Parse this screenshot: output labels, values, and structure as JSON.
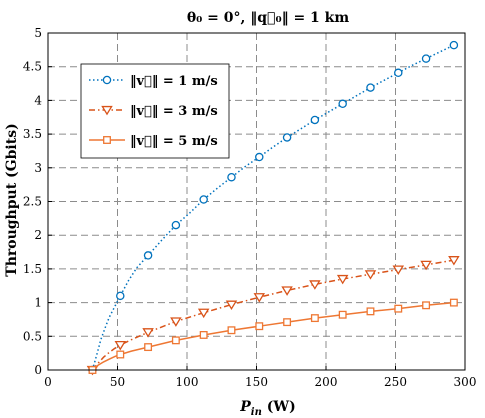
{
  "chart_data": {
    "type": "line",
    "title": "θ₀ = 0°, ‖q⃗₀‖ = 1 km",
    "xlabel": "P_in (W)",
    "xlabel_main": "P",
    "xlabel_sub": "in",
    "xlabel_unit": " (W)",
    "ylabel": "Throughput (Gbits)",
    "xlim": [
      0,
      300
    ],
    "ylim": [
      0,
      5
    ],
    "x_ticks": [
      "0",
      "50",
      "100",
      "150",
      "200",
      "250",
      "300"
    ],
    "y_ticks": [
      "0",
      "0.5",
      "1",
      "1.5",
      "2",
      "2.5",
      "3",
      "3.5",
      "4",
      "4.5",
      "5"
    ],
    "grid": true,
    "legend_position": "top-left",
    "series": [
      {
        "name": "‖v⃗‖ = 1 m/s",
        "color": "#0072BD",
        "line_style": "dotted",
        "marker": "circle",
        "x": [
          32,
          35,
          38,
          41,
          44,
          47,
          52,
          58,
          64,
          72,
          82,
          92,
          102,
          112,
          122,
          132,
          142,
          152,
          162,
          172,
          182,
          192,
          202,
          212,
          222,
          232,
          242,
          252,
          262,
          272,
          282,
          292
        ],
        "y": [
          0,
          0.22,
          0.45,
          0.62,
          0.78,
          0.9,
          1.1,
          1.33,
          1.52,
          1.7,
          1.93,
          2.15,
          2.33,
          2.53,
          2.7,
          2.86,
          3.02,
          3.16,
          3.31,
          3.45,
          3.58,
          3.71,
          3.83,
          3.95,
          4.07,
          4.19,
          4.3,
          4.41,
          4.52,
          4.62,
          4.72,
          4.82
        ],
        "marker_x": [
          32,
          52,
          72,
          92,
          112,
          132,
          152,
          172,
          192,
          212,
          232,
          252,
          272,
          292
        ],
        "marker_y": [
          0,
          1.1,
          1.7,
          2.15,
          2.53,
          2.86,
          3.16,
          3.45,
          3.71,
          3.95,
          4.19,
          4.41,
          4.62,
          4.82
        ]
      },
      {
        "name": "‖v⃗‖ = 3 m/s",
        "color": "#D95319",
        "line_style": "dashdot",
        "marker": "triangle-down",
        "x": [
          32,
          36,
          40,
          44,
          48,
          52,
          60,
          72,
          92,
          112,
          132,
          152,
          172,
          192,
          212,
          232,
          252,
          272,
          292
        ],
        "y": [
          0,
          0.1,
          0.19,
          0.26,
          0.32,
          0.37,
          0.45,
          0.56,
          0.72,
          0.85,
          0.97,
          1.08,
          1.18,
          1.27,
          1.35,
          1.42,
          1.49,
          1.56,
          1.63
        ],
        "marker_x": [
          32,
          52,
          72,
          92,
          112,
          132,
          152,
          172,
          192,
          212,
          232,
          252,
          272,
          292
        ],
        "marker_y": [
          0,
          0.37,
          0.56,
          0.72,
          0.85,
          0.97,
          1.08,
          1.18,
          1.27,
          1.35,
          1.42,
          1.49,
          1.56,
          1.63
        ]
      },
      {
        "name": "‖v⃗‖ = 5 m/s",
        "color": "#EE7733",
        "line_style": "solid",
        "marker": "square",
        "x": [
          32,
          36,
          40,
          44,
          48,
          52,
          60,
          72,
          92,
          112,
          132,
          152,
          172,
          192,
          212,
          232,
          252,
          272,
          292
        ],
        "y": [
          0,
          0.07,
          0.12,
          0.16,
          0.2,
          0.23,
          0.28,
          0.34,
          0.44,
          0.52,
          0.59,
          0.65,
          0.71,
          0.77,
          0.82,
          0.87,
          0.91,
          0.96,
          1.0
        ],
        "marker_x": [
          32,
          52,
          72,
          92,
          112,
          132,
          152,
          172,
          192,
          212,
          232,
          252,
          272,
          292
        ],
        "marker_y": [
          0,
          0.23,
          0.34,
          0.44,
          0.52,
          0.59,
          0.65,
          0.71,
          0.77,
          0.82,
          0.87,
          0.91,
          0.96,
          1.0
        ]
      }
    ]
  }
}
